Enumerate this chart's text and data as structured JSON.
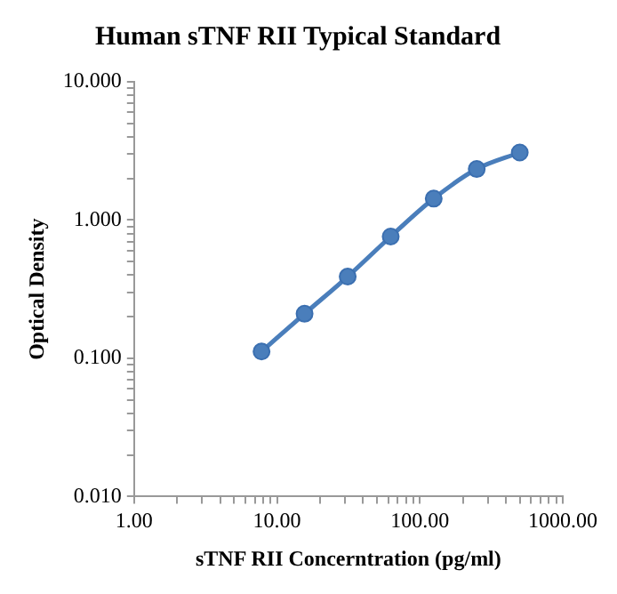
{
  "chart_data": {
    "type": "line",
    "title": "Human sTNF RII Typical Standard",
    "xlabel": "sTNF RII Concerntration (pg/ml)",
    "ylabel": "Optical Density",
    "log": "xy",
    "grid": false,
    "legend": false,
    "marker": "circle",
    "line_style": "solid",
    "x": [
      7.8,
      15.6,
      31.25,
      62.5,
      125,
      250,
      500
    ],
    "series": [
      {
        "color": "#4a7ebb",
        "values": [
          0.112,
          0.21,
          0.39,
          0.76,
          1.43,
          2.34,
          3.08
        ]
      }
    ],
    "xlim": [
      1,
      1000
    ],
    "ylim": [
      0.01,
      10
    ],
    "xticks": [
      {
        "value": 1,
        "label": "1.00"
      },
      {
        "value": 2,
        "label": null
      },
      {
        "value": 3,
        "label": null
      },
      {
        "value": 4,
        "label": null
      },
      {
        "value": 5,
        "label": null
      },
      {
        "value": 6,
        "label": null
      },
      {
        "value": 7,
        "label": null
      },
      {
        "value": 8,
        "label": null
      },
      {
        "value": 9,
        "label": null
      },
      {
        "value": 10,
        "label": "10.00"
      },
      {
        "value": 20,
        "label": null
      },
      {
        "value": 30,
        "label": null
      },
      {
        "value": 40,
        "label": null
      },
      {
        "value": 50,
        "label": null
      },
      {
        "value": 60,
        "label": null
      },
      {
        "value": 70,
        "label": null
      },
      {
        "value": 80,
        "label": null
      },
      {
        "value": 90,
        "label": null
      },
      {
        "value": 100,
        "label": "100.00"
      },
      {
        "value": 200,
        "label": null
      },
      {
        "value": 300,
        "label": null
      },
      {
        "value": 400,
        "label": null
      },
      {
        "value": 500,
        "label": null
      },
      {
        "value": 600,
        "label": null
      },
      {
        "value": 700,
        "label": null
      },
      {
        "value": 800,
        "label": null
      },
      {
        "value": 900,
        "label": null
      },
      {
        "value": 1000,
        "label": "1000.00"
      }
    ],
    "yticks": [
      {
        "value": 0.01,
        "label": "0.010"
      },
      {
        "value": 0.02,
        "label": null
      },
      {
        "value": 0.03,
        "label": null
      },
      {
        "value": 0.04,
        "label": null
      },
      {
        "value": 0.05,
        "label": null
      },
      {
        "value": 0.06,
        "label": null
      },
      {
        "value": 0.07,
        "label": null
      },
      {
        "value": 0.08,
        "label": null
      },
      {
        "value": 0.09,
        "label": null
      },
      {
        "value": 0.1,
        "label": "0.100"
      },
      {
        "value": 0.2,
        "label": null
      },
      {
        "value": 0.3,
        "label": null
      },
      {
        "value": 0.4,
        "label": null
      },
      {
        "value": 0.5,
        "label": null
      },
      {
        "value": 0.6,
        "label": null
      },
      {
        "value": 0.7,
        "label": null
      },
      {
        "value": 0.8,
        "label": null
      },
      {
        "value": 0.9,
        "label": null
      },
      {
        "value": 1,
        "label": "1.000"
      },
      {
        "value": 2,
        "label": null
      },
      {
        "value": 3,
        "label": null
      },
      {
        "value": 4,
        "label": null
      },
      {
        "value": 5,
        "label": null
      },
      {
        "value": 6,
        "label": null
      },
      {
        "value": 7,
        "label": null
      },
      {
        "value": 8,
        "label": null
      },
      {
        "value": 9,
        "label": null
      },
      {
        "value": 10,
        "label": "10.000"
      }
    ]
  }
}
